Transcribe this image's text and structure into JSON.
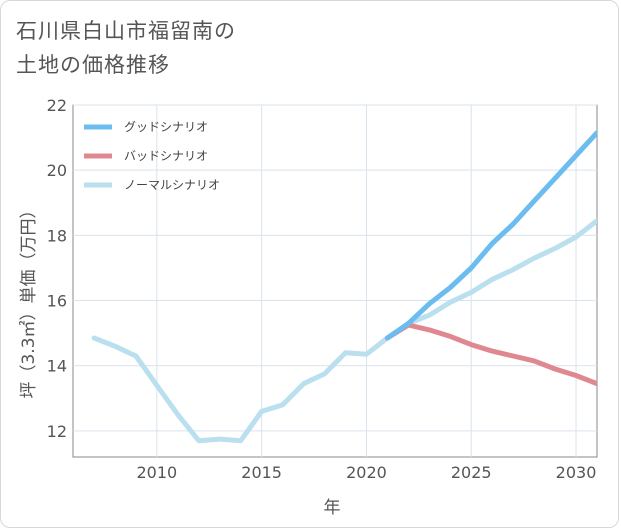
{
  "title_lines": [
    "石川県白山市福留南の",
    "土地の価格推移"
  ],
  "chart_data": {
    "type": "line",
    "xlabel": "年",
    "ylabel": "坪（3.3㎡）単価（万円）",
    "xlim": [
      2006,
      2031
    ],
    "ylim": [
      11.2,
      22
    ],
    "x_ticks": [
      2010,
      2015,
      2020,
      2025,
      2030
    ],
    "y_ticks": [
      12,
      14,
      16,
      18,
      20,
      22
    ],
    "grid": true,
    "legend_position": "top-left",
    "series": [
      {
        "name": "グッドシナリオ",
        "color": "#6bbcef",
        "x": [
          2021,
          2022,
          2023,
          2024,
          2025,
          2026,
          2027,
          2028,
          2029,
          2030,
          2031
        ],
        "y": [
          14.85,
          15.3,
          15.9,
          16.4,
          17.0,
          17.75,
          18.35,
          19.05,
          19.75,
          20.45,
          21.15
        ]
      },
      {
        "name": "バッドシナリオ",
        "color": "#e08890",
        "x": [
          2021,
          2022,
          2023,
          2024,
          2025,
          2026,
          2027,
          2028,
          2029,
          2030,
          2031
        ],
        "y": [
          14.85,
          15.25,
          15.1,
          14.9,
          14.65,
          14.45,
          14.3,
          14.15,
          13.9,
          13.7,
          13.45
        ]
      },
      {
        "name": "ノーマルシナリオ",
        "color": "#badfee",
        "x": [
          2007,
          2008,
          2009,
          2010,
          2011,
          2012,
          2013,
          2014,
          2015,
          2016,
          2017,
          2018,
          2019,
          2020,
          2021,
          2022,
          2023,
          2024,
          2025,
          2026,
          2027,
          2028,
          2029,
          2030,
          2031
        ],
        "y": [
          14.85,
          14.6,
          14.3,
          13.4,
          12.5,
          11.7,
          11.75,
          11.7,
          12.6,
          12.8,
          13.45,
          13.75,
          14.4,
          14.35,
          14.85,
          15.3,
          15.55,
          15.95,
          16.25,
          16.65,
          16.95,
          17.3,
          17.6,
          17.95,
          18.45
        ]
      }
    ]
  }
}
